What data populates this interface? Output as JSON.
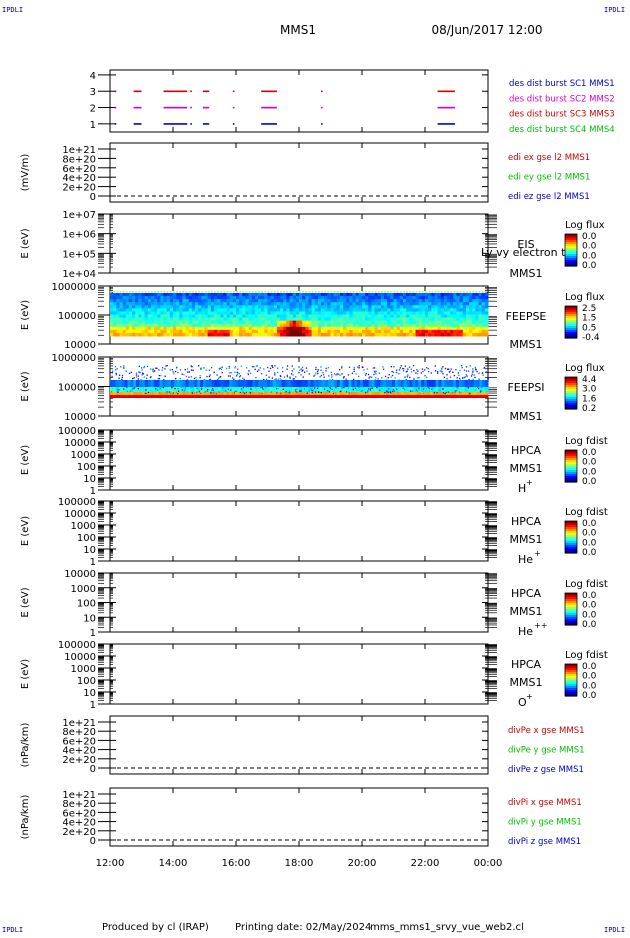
{
  "header": {
    "corner_left_top": "IPDLI",
    "corner_right_top": "IPDLI",
    "title": "MMS1",
    "date": "08/Jun/2017 12:00"
  },
  "footer": {
    "produced": "Produced by cl (IRAP)",
    "printing_date": "Printing date: 02/May/2024",
    "script_name": "mms_mms1_srvy_vue_web2.cl",
    "corner_left_bottom": "IPDLI",
    "corner_right_bottom": "IPDLI"
  },
  "time_axis": {
    "ticks": [
      "12:00",
      "14:00",
      "16:00",
      "18:00",
      "20:00",
      "22:00",
      "00:00"
    ],
    "range_hours": [
      12,
      24
    ]
  },
  "chart_data": [
    {
      "id": "des",
      "type": "scatter",
      "ylabel": "",
      "ylim": [
        0.5,
        4.3
      ],
      "ytick_labels": [
        "1",
        "2",
        "3",
        "4"
      ],
      "legend": [
        {
          "name": "des dist burst SC1 MMS1",
          "color": "#0000c8"
        },
        {
          "name": "des dist burst SC2 MMS2",
          "color": "#d000d0"
        },
        {
          "name": "des dist burst SC3 MMS3",
          "color": "#d00000"
        },
        {
          "name": "des dist burst SC4 MMS4",
          "color": "#00c000"
        }
      ],
      "intervals_hours": [
        [
          12.15,
          12.2
        ],
        [
          12.75,
          13.0
        ],
        [
          13.7,
          14.45
        ],
        [
          14.55,
          14.6
        ],
        [
          14.95,
          15.15
        ],
        [
          15.9,
          15.95
        ],
        [
          16.8,
          17.3
        ],
        [
          18.7,
          18.75
        ],
        [
          22.4,
          22.95
        ]
      ],
      "series_levels": [
        1,
        2,
        3
      ]
    },
    {
      "id": "edi",
      "type": "line",
      "ylabel": "(mV/m)",
      "ytick_labels": [
        "0",
        "2e+20",
        "4e+20",
        "6e+20",
        "8e+20",
        "1e+21"
      ],
      "legend": [
        {
          "name": "edi ex gse l2 MMS1",
          "color": "#d00000"
        },
        {
          "name": "edi ey gse l2 MMS1",
          "color": "#00c000"
        },
        {
          "name": "edi ez gse l2 MMS1",
          "color": "#0000c8"
        }
      ]
    },
    {
      "id": "eis",
      "type": "heatmap",
      "ylabel": "E (eV)",
      "ytick_labels": [
        "1e+04",
        "1e+05",
        "1e+06",
        "1e+07"
      ],
      "instrument": "EIS",
      "spacecraft": "MMS1",
      "note": "Ly vy electron to",
      "colorbar_title": "Log flux",
      "colorbar_ticks": [
        "0.0",
        "0.0",
        "0.0",
        "0.0"
      ]
    },
    {
      "id": "feepse",
      "type": "heatmap",
      "ylabel": "E (eV)",
      "ytick_labels": [
        "10000",
        "100000",
        "1000000"
      ],
      "instrument": "FEEPSE",
      "spacecraft": "MMS1",
      "colorbar_title": "Log flux",
      "colorbar_ticks": [
        "2.5",
        "1.5",
        "0.5",
        "-0.4"
      ]
    },
    {
      "id": "feepsi",
      "type": "heatmap",
      "ylabel": "E (eV)",
      "ytick_labels": [
        "10000",
        "100000",
        "1000000"
      ],
      "instrument": "FEEPSI",
      "spacecraft": "MMS1",
      "colorbar_title": "Log flux",
      "colorbar_ticks": [
        "4.4",
        "3.0",
        "1.6",
        "0.2"
      ]
    },
    {
      "id": "hpca_h",
      "type": "heatmap",
      "ylabel": "E (eV)",
      "ytick_labels": [
        "1",
        "10",
        "100",
        "1000",
        "10000",
        "100000"
      ],
      "instrument": "HPCA",
      "spacecraft": "MMS1",
      "species": "H",
      "species_charge": "+",
      "colorbar_title": "Log fdist",
      "colorbar_ticks": [
        "0.0",
        "0.0",
        "0.0",
        "0.0"
      ]
    },
    {
      "id": "hpca_he",
      "type": "heatmap",
      "ylabel": "E (eV)",
      "ytick_labels": [
        "1",
        "10",
        "100",
        "1000",
        "10000",
        "100000"
      ],
      "instrument": "HPCA",
      "spacecraft": "MMS1",
      "species": "He",
      "species_charge": "+",
      "colorbar_title": "Log fdist",
      "colorbar_ticks": [
        "0.0",
        "0.0",
        "0.0",
        "0.0"
      ]
    },
    {
      "id": "hpca_he2",
      "type": "heatmap",
      "ylabel": "E (eV)",
      "ytick_labels": [
        "1",
        "10",
        "100",
        "1000",
        "10000"
      ],
      "instrument": "HPCA",
      "spacecraft": "MMS1",
      "species": "He",
      "species_charge": "++",
      "colorbar_title": "Log fdist",
      "colorbar_ticks": [
        "0.0",
        "0.0",
        "0.0",
        "0.0"
      ]
    },
    {
      "id": "hpca_o",
      "type": "heatmap",
      "ylabel": "E (eV)",
      "ytick_labels": [
        "1",
        "10",
        "100",
        "1000",
        "10000",
        "100000"
      ],
      "instrument": "HPCA",
      "spacecraft": "MMS1",
      "species": "O",
      "species_charge": "+",
      "colorbar_title": "Log fdist",
      "colorbar_ticks": [
        "0.0",
        "0.0",
        "0.0",
        "0.0"
      ]
    },
    {
      "id": "divpe",
      "type": "line",
      "ylabel": "(nPa/km)",
      "ytick_labels": [
        "0",
        "2e+20",
        "4e+20",
        "6e+20",
        "8e+20",
        "1e+21"
      ],
      "legend": [
        {
          "name": "divPe x gse MMS1",
          "color": "#d00000"
        },
        {
          "name": "divPe y gse MMS1",
          "color": "#00c000"
        },
        {
          "name": "divPe z gse MMS1",
          "color": "#0000c8"
        }
      ]
    },
    {
      "id": "divpi",
      "type": "line",
      "ylabel": "(nPa/km)",
      "ytick_labels": [
        "0",
        "2e+20",
        "4e+20",
        "6e+20",
        "8e+20",
        "1e+21"
      ],
      "legend": [
        {
          "name": "divPi x gse MMS1",
          "color": "#d00000"
        },
        {
          "name": "divPi y gse MMS1",
          "color": "#00c000"
        },
        {
          "name": "divPi z gse MMS1",
          "color": "#0000c8"
        }
      ]
    }
  ]
}
